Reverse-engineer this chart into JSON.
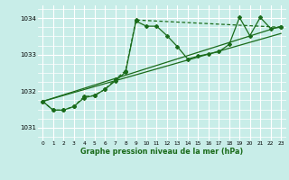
{
  "title": "Graphe pression niveau de la mer (hPa)",
  "bg_color": "#c8ede8",
  "grid_color": "#ffffff",
  "line_color": "#1a6b1a",
  "xlim": [
    -0.5,
    23.5
  ],
  "ylim": [
    1030.65,
    1034.35
  ],
  "yticks": [
    1031,
    1032,
    1033,
    1034
  ],
  "xticks": [
    0,
    1,
    2,
    3,
    4,
    5,
    6,
    7,
    8,
    9,
    10,
    11,
    12,
    13,
    14,
    15,
    16,
    17,
    18,
    19,
    20,
    21,
    22,
    23
  ],
  "series_main": {
    "x": [
      0,
      1,
      2,
      3,
      4,
      5,
      6,
      7,
      8,
      9,
      10,
      11,
      12,
      13,
      14,
      15,
      16,
      17,
      18,
      19,
      20,
      21,
      22,
      23
    ],
    "y": [
      1031.72,
      1031.48,
      1031.48,
      1031.58,
      1031.82,
      1031.88,
      1032.05,
      1032.28,
      1032.52,
      1033.92,
      1033.78,
      1033.78,
      1033.52,
      1033.22,
      1032.88,
      1032.96,
      1033.02,
      1033.08,
      1033.28,
      1034.02,
      1033.52,
      1034.02,
      1033.72,
      1033.75
    ]
  },
  "series_dashed": {
    "x": [
      0,
      1,
      2,
      3,
      4,
      5,
      6,
      7,
      8,
      9,
      23
    ],
    "y": [
      1031.72,
      1031.48,
      1031.48,
      1031.58,
      1031.85,
      1031.88,
      1032.05,
      1032.32,
      1032.56,
      1033.95,
      1033.75
    ]
  },
  "line1": [
    [
      0,
      23
    ],
    [
      1031.72,
      1033.78
    ]
  ],
  "line2": [
    [
      0,
      23
    ],
    [
      1031.72,
      1033.58
    ]
  ]
}
